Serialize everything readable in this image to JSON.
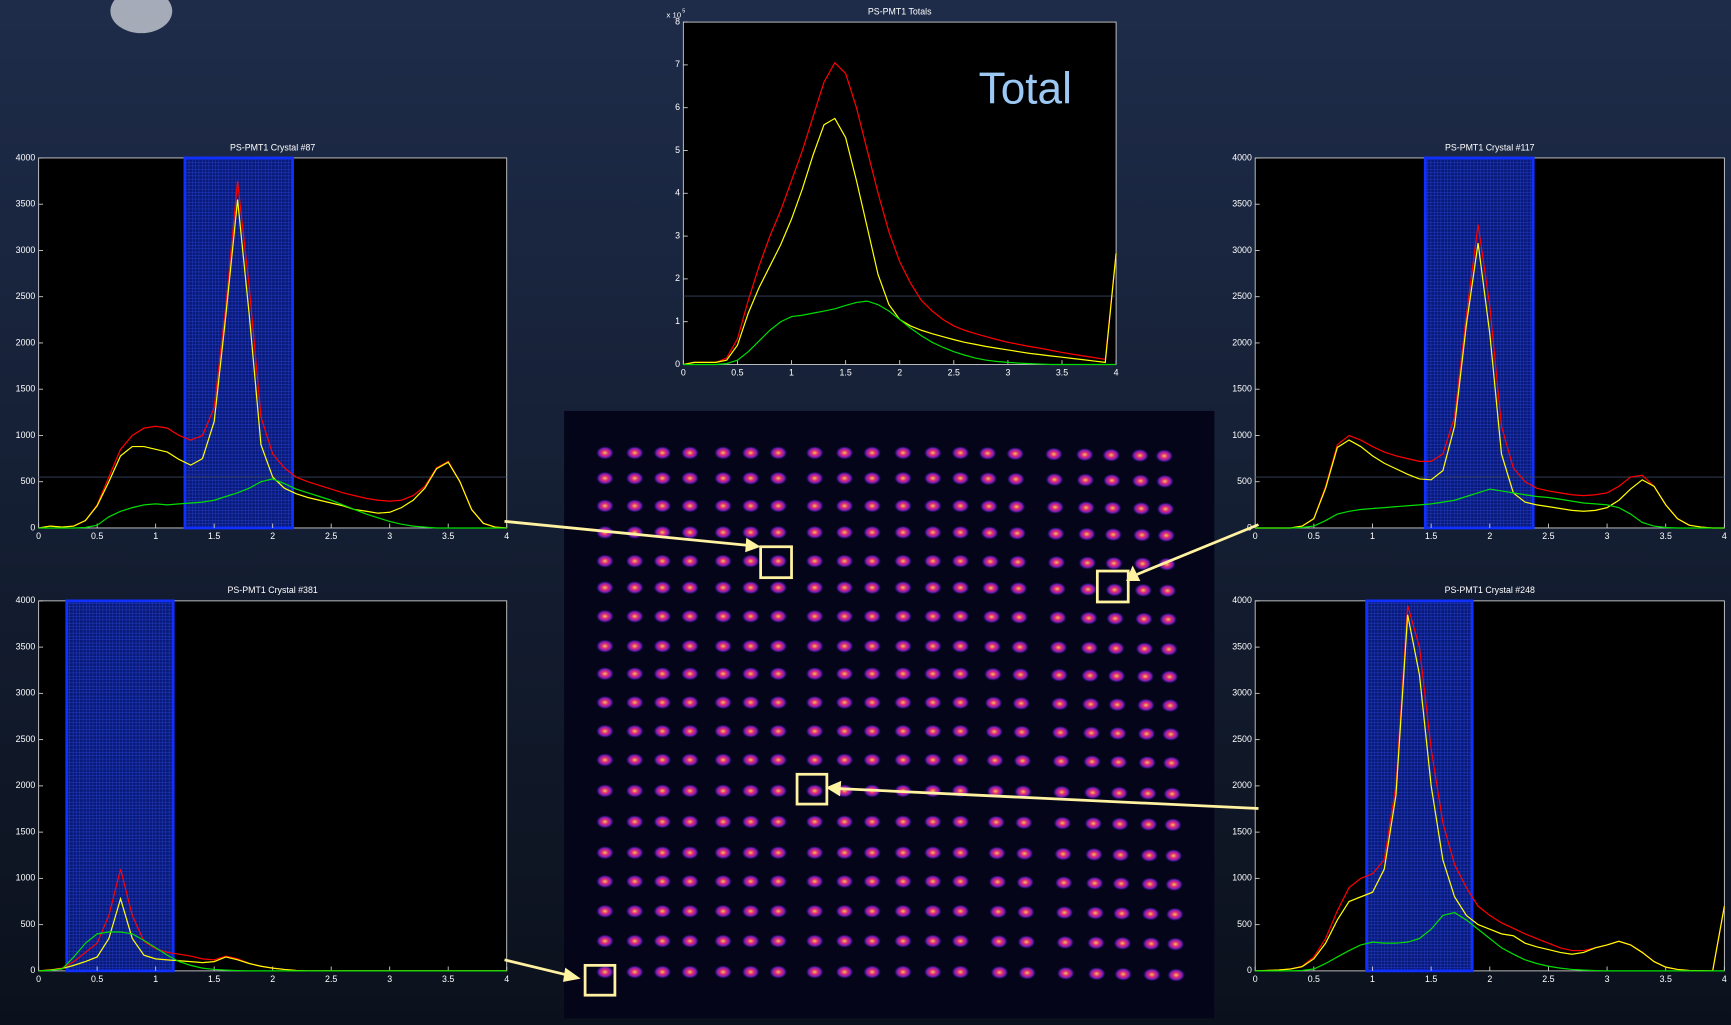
{
  "chart_data": [
    {
      "type": "line",
      "title": "PS-PMT1 Crystal #87",
      "x": [
        0,
        0.1,
        0.2,
        0.3,
        0.4,
        0.5,
        0.6,
        0.7,
        0.8,
        0.9,
        1,
        1.1,
        1.2,
        1.3,
        1.4,
        1.5,
        1.6,
        1.7,
        1.8,
        1.9,
        2,
        2.1,
        2.2,
        2.3,
        2.4,
        2.5,
        2.6,
        2.7,
        2.8,
        2.9,
        3,
        3.1,
        3.2,
        3.3,
        3.4,
        3.5,
        3.6,
        3.7,
        3.8,
        3.9,
        4
      ],
      "series": [
        {
          "color": "#ff0000",
          "values": [
            0,
            20,
            10,
            20,
            80,
            250,
            550,
            850,
            1000,
            1080,
            1100,
            1080,
            1000,
            950,
            1000,
            1300,
            2400,
            3750,
            2600,
            1200,
            800,
            650,
            550,
            500,
            460,
            420,
            380,
            350,
            320,
            300,
            290,
            300,
            350,
            450,
            650,
            720,
            500,
            200,
            50,
            10,
            0
          ]
        },
        {
          "color": "#ffff00",
          "values": [
            0,
            20,
            10,
            20,
            80,
            240,
            500,
            780,
            880,
            880,
            850,
            820,
            740,
            680,
            750,
            1150,
            2300,
            3550,
            2300,
            900,
            550,
            430,
            370,
            330,
            300,
            270,
            240,
            200,
            180,
            160,
            170,
            220,
            300,
            430,
            640,
            710,
            500,
            200,
            50,
            10,
            0
          ]
        },
        {
          "color": "#00dd00",
          "values": [
            0,
            0,
            0,
            0,
            5,
            30,
            120,
            180,
            220,
            250,
            260,
            250,
            260,
            270,
            280,
            300,
            340,
            380,
            430,
            500,
            530,
            480,
            420,
            380,
            340,
            300,
            250,
            200,
            150,
            110,
            70,
            40,
            20,
            10,
            0,
            0,
            0,
            0,
            0,
            0,
            0
          ]
        }
      ],
      "window": [
        1.25,
        2.17
      ],
      "threshold": 550,
      "xlim": [
        0,
        4
      ],
      "xticks": [
        0,
        0.5,
        1,
        1.5,
        2,
        2.5,
        3,
        3.5,
        4
      ],
      "ylim": [
        0,
        4000
      ],
      "yticks": [
        0,
        500,
        1000,
        1500,
        2000,
        2500,
        3000,
        3500,
        4000
      ]
    },
    {
      "type": "line",
      "title": "PS-PMT1 Crystal #117",
      "x": [
        0,
        0.1,
        0.2,
        0.3,
        0.4,
        0.5,
        0.6,
        0.7,
        0.8,
        0.9,
        1,
        1.1,
        1.2,
        1.3,
        1.4,
        1.5,
        1.6,
        1.7,
        1.8,
        1.9,
        2,
        2.1,
        2.2,
        2.3,
        2.4,
        2.5,
        2.6,
        2.7,
        2.8,
        2.9,
        3,
        3.1,
        3.2,
        3.3,
        3.4,
        3.5,
        3.6,
        3.7,
        3.8,
        3.9,
        4
      ],
      "series": [
        {
          "color": "#ff0000",
          "values": [
            0,
            0,
            0,
            0,
            20,
            100,
            450,
            900,
            1000,
            950,
            880,
            820,
            780,
            750,
            720,
            720,
            800,
            1200,
            2300,
            3280,
            2400,
            1100,
            650,
            500,
            430,
            400,
            380,
            360,
            350,
            360,
            380,
            450,
            550,
            570,
            450,
            250,
            100,
            30,
            10,
            0,
            0
          ]
        },
        {
          "color": "#ffff00",
          "values": [
            0,
            0,
            0,
            0,
            20,
            100,
            430,
            870,
            950,
            880,
            780,
            700,
            640,
            580,
            530,
            520,
            620,
            1100,
            2200,
            3080,
            2100,
            800,
            380,
            280,
            250,
            230,
            210,
            190,
            180,
            190,
            220,
            300,
            420,
            520,
            450,
            250,
            100,
            30,
            10,
            0,
            0
          ]
        },
        {
          "color": "#00dd00",
          "values": [
            0,
            0,
            0,
            0,
            5,
            20,
            80,
            150,
            180,
            200,
            210,
            220,
            230,
            240,
            250,
            260,
            280,
            300,
            340,
            380,
            420,
            400,
            380,
            360,
            340,
            330,
            310,
            290,
            270,
            260,
            250,
            220,
            150,
            60,
            20,
            5,
            0,
            0,
            0,
            0,
            0
          ]
        }
      ],
      "window": [
        1.45,
        2.37
      ],
      "threshold": 550,
      "xlim": [
        0,
        4
      ],
      "xticks": [
        0,
        0.5,
        1,
        1.5,
        2,
        2.5,
        3,
        3.5,
        4
      ],
      "ylim": [
        0,
        4000
      ],
      "yticks": [
        0,
        500,
        1000,
        1500,
        2000,
        2500,
        3000,
        3500,
        4000
      ]
    },
    {
      "type": "line",
      "title": "PS-PMT1 Crystal #381",
      "x": [
        0,
        0.1,
        0.2,
        0.3,
        0.4,
        0.5,
        0.6,
        0.7,
        0.8,
        0.9,
        1,
        1.1,
        1.2,
        1.3,
        1.4,
        1.5,
        1.6,
        1.7,
        1.8,
        1.9,
        2,
        2.1,
        2.2,
        2.3,
        2.4,
        2.5,
        2.6,
        2.7,
        2.8,
        2.9,
        3,
        3.1,
        3.2,
        3.3,
        3.4,
        3.5,
        3.6,
        3.7,
        3.8,
        3.9,
        4
      ],
      "series": [
        {
          "color": "#ff0000",
          "values": [
            0,
            10,
            30,
            100,
            200,
            300,
            600,
            1100,
            600,
            320,
            240,
            200,
            180,
            160,
            130,
            120,
            160,
            130,
            80,
            50,
            30,
            15,
            5,
            0,
            0,
            0,
            0,
            0,
            0,
            0,
            0,
            0,
            0,
            0,
            0,
            0,
            0,
            0,
            0,
            0,
            0
          ]
        },
        {
          "color": "#ffff00",
          "values": [
            0,
            10,
            25,
            60,
            100,
            150,
            350,
            780,
            350,
            170,
            130,
            120,
            110,
            100,
            90,
            100,
            150,
            120,
            80,
            50,
            30,
            15,
            5,
            0,
            0,
            0,
            0,
            0,
            0,
            0,
            0,
            0,
            0,
            0,
            0,
            0,
            0,
            0,
            0,
            0,
            0
          ]
        },
        {
          "color": "#00dd00",
          "values": [
            0,
            5,
            20,
            150,
            300,
            400,
            420,
            420,
            400,
            330,
            250,
            170,
            100,
            60,
            30,
            15,
            8,
            4,
            0,
            0,
            0,
            0,
            0,
            0,
            0,
            0,
            0,
            0,
            0,
            0,
            0,
            0,
            0,
            0,
            0,
            0,
            0,
            0,
            0,
            0,
            0
          ]
        }
      ],
      "window": [
        0.24,
        1.15
      ],
      "xlim": [
        0,
        4
      ],
      "xticks": [
        0,
        0.5,
        1,
        1.5,
        2,
        2.5,
        3,
        3.5,
        4
      ],
      "ylim": [
        0,
        4000
      ],
      "yticks": [
        0,
        500,
        1000,
        1500,
        2000,
        2500,
        3000,
        3500,
        4000
      ]
    },
    {
      "type": "line",
      "title": "PS-PMT1 Crystal #248",
      "x": [
        0,
        0.1,
        0.2,
        0.3,
        0.4,
        0.5,
        0.6,
        0.7,
        0.8,
        0.9,
        1,
        1.1,
        1.2,
        1.3,
        1.4,
        1.5,
        1.6,
        1.7,
        1.8,
        1.9,
        2,
        2.1,
        2.2,
        2.3,
        2.4,
        2.5,
        2.6,
        2.7,
        2.8,
        2.9,
        3,
        3.1,
        3.2,
        3.3,
        3.4,
        3.5,
        3.6,
        3.7,
        3.8,
        3.9,
        4
      ],
      "series": [
        {
          "color": "#ff0000",
          "values": [
            0,
            5,
            10,
            20,
            50,
            150,
            350,
            650,
            900,
            1000,
            1050,
            1200,
            2000,
            3950,
            3500,
            2400,
            1600,
            1150,
            900,
            700,
            600,
            520,
            460,
            400,
            350,
            300,
            250,
            220,
            220,
            250,
            280,
            320,
            280,
            200,
            100,
            40,
            15,
            5,
            2,
            0,
            700
          ]
        },
        {
          "color": "#ffff00",
          "values": [
            0,
            5,
            10,
            20,
            45,
            130,
            300,
            550,
            750,
            800,
            850,
            1100,
            1900,
            3850,
            3200,
            2000,
            1200,
            800,
            600,
            500,
            450,
            400,
            380,
            300,
            260,
            230,
            200,
            180,
            200,
            250,
            280,
            320,
            280,
            200,
            100,
            40,
            15,
            5,
            2,
            0,
            700
          ]
        },
        {
          "color": "#00dd00",
          "values": [
            0,
            0,
            0,
            0,
            5,
            20,
            80,
            150,
            220,
            280,
            310,
            300,
            300,
            310,
            350,
            450,
            600,
            630,
            550,
            450,
            350,
            250,
            180,
            120,
            80,
            50,
            30,
            15,
            8,
            4,
            0,
            0,
            0,
            0,
            0,
            0,
            0,
            0,
            0,
            0,
            0
          ]
        }
      ],
      "window": [
        0.95,
        1.85
      ],
      "xlim": [
        0,
        4
      ],
      "xticks": [
        0,
        0.5,
        1,
        1.5,
        2,
        2.5,
        3,
        3.5,
        4
      ],
      "ylim": [
        0,
        4000
      ],
      "yticks": [
        0,
        500,
        1000,
        1500,
        2000,
        2500,
        3000,
        3500,
        4000
      ]
    },
    {
      "type": "line",
      "title": "PS-PMT1 Totals",
      "annotation": "Total",
      "y_scale_label": {
        "base": "x 10",
        "exponent": "5"
      },
      "x": [
        0,
        0.1,
        0.2,
        0.3,
        0.4,
        0.5,
        0.6,
        0.7,
        0.8,
        0.9,
        1,
        1.1,
        1.2,
        1.3,
        1.4,
        1.5,
        1.6,
        1.7,
        1.8,
        1.9,
        2,
        2.1,
        2.2,
        2.3,
        2.4,
        2.5,
        2.6,
        2.7,
        2.8,
        2.9,
        3,
        3.1,
        3.2,
        3.3,
        3.4,
        3.5,
        3.6,
        3.7,
        3.8,
        3.9,
        4
      ],
      "series": [
        {
          "color": "#ff0000",
          "values": [
            0,
            0.05,
            0.05,
            0.05,
            0.15,
            0.6,
            1.5,
            2.3,
            3.0,
            3.6,
            4.3,
            5.0,
            5.8,
            6.6,
            7.05,
            6.8,
            6.0,
            5.0,
            4.0,
            3.1,
            2.4,
            1.9,
            1.5,
            1.25,
            1.05,
            0.9,
            0.8,
            0.72,
            0.65,
            0.58,
            0.52,
            0.47,
            0.42,
            0.38,
            0.33,
            0.28,
            0.24,
            0.2,
            0.16,
            0.12,
            2.6
          ]
        },
        {
          "color": "#ffff00",
          "values": [
            0,
            0.05,
            0.05,
            0.05,
            0.1,
            0.45,
            1.2,
            1.8,
            2.3,
            2.8,
            3.4,
            4.1,
            4.9,
            5.6,
            5.75,
            5.3,
            4.3,
            3.2,
            2.1,
            1.4,
            1.05,
            0.9,
            0.8,
            0.72,
            0.65,
            0.58,
            0.52,
            0.47,
            0.42,
            0.38,
            0.34,
            0.3,
            0.26,
            0.23,
            0.2,
            0.17,
            0.14,
            0.11,
            0.08,
            0.05,
            2.6
          ]
        },
        {
          "color": "#00dd00",
          "values": [
            0,
            0,
            0,
            0,
            0.02,
            0.1,
            0.3,
            0.55,
            0.8,
            1.0,
            1.12,
            1.15,
            1.2,
            1.25,
            1.3,
            1.38,
            1.45,
            1.48,
            1.4,
            1.25,
            1.05,
            0.85,
            0.67,
            0.52,
            0.4,
            0.3,
            0.22,
            0.15,
            0.1,
            0.07,
            0.05,
            0.03,
            0.02,
            0.01,
            0,
            0,
            0,
            0,
            0,
            0,
            0
          ]
        }
      ],
      "threshold": 1.6,
      "xlim": [
        0,
        4
      ],
      "xticks": [
        0,
        0.5,
        1,
        1.5,
        2,
        2.5,
        3,
        3.5,
        4
      ],
      "ylim": [
        0,
        8
      ],
      "yticks": [
        0,
        1,
        2,
        3,
        4,
        5,
        6,
        7,
        8
      ]
    }
  ]
}
